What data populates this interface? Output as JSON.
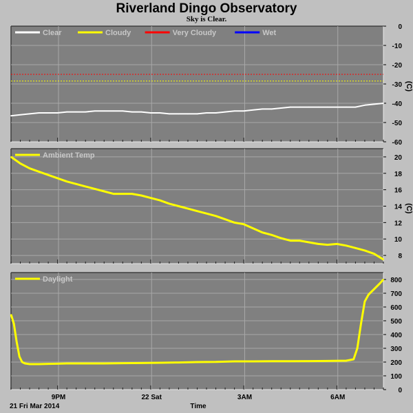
{
  "title": "Riverland Dingo Observatory",
  "subtitle": "Sky is Clear.",
  "xaxis": {
    "date_label": "21 Fri Mar 2014",
    "time_label": "Time",
    "tick_labels": [
      "9PM",
      "22 Sat",
      "3AM",
      "6AM"
    ]
  },
  "colors": {
    "plot_bg": "#808080",
    "page_bg": "#c0c0c0",
    "clear": "#ffffff",
    "cloudy": "#ffff00",
    "very_cloudy": "#ff0000",
    "wet": "#0000ff"
  },
  "chart_data": [
    {
      "type": "line",
      "panel": "sky",
      "legend": [
        "Clear",
        "Cloudy",
        "Very Cloudy",
        "Wet"
      ],
      "unit": "(C)",
      "ylim": [
        -60,
        0
      ],
      "yticks": [
        0,
        -10,
        -20,
        -30,
        -40,
        -50,
        -60
      ],
      "grid": true,
      "legend_placement": "top-left",
      "thresholds": [
        {
          "name": "Very Cloudy",
          "value": -25
        },
        {
          "name": "Cloudy",
          "value": -28.5
        }
      ],
      "series": [
        {
          "name": "Clear",
          "x": [
            0,
            0.5,
            1,
            1.5,
            2,
            2.5,
            3,
            3.5,
            4,
            4.5,
            5,
            5.5,
            6,
            6.5,
            7,
            7.5,
            8,
            8.5,
            9,
            9.5,
            10,
            10.5,
            11,
            11.5,
            12,
            12.5,
            13,
            13.5,
            14,
            14.5,
            15,
            15.5,
            16,
            16.5,
            17,
            17.5,
            18,
            18.5,
            19,
            19.5,
            20
          ],
          "values": [
            -46.5,
            -46,
            -45.5,
            -45,
            -45,
            -45,
            -44.5,
            -44.5,
            -44.5,
            -44,
            -44,
            -44,
            -44,
            -44.5,
            -44.5,
            -45,
            -45,
            -45.5,
            -45.5,
            -45.5,
            -45.5,
            -45,
            -45,
            -44.5,
            -44,
            -44,
            -43.5,
            -43,
            -43,
            -42.5,
            -42,
            -42,
            -42,
            -42,
            -42,
            -42,
            -42,
            -42,
            -41,
            -40.5,
            -40
          ]
        }
      ]
    },
    {
      "type": "line",
      "panel": "ambient",
      "legend": [
        "Ambient Temp"
      ],
      "unit": "(C)",
      "ylim": [
        7,
        21
      ],
      "yticks": [
        20,
        18,
        16,
        14,
        12,
        10,
        8
      ],
      "grid": true,
      "legend_placement": "top-left",
      "series": [
        {
          "name": "Ambient Temp",
          "x": [
            0,
            0.5,
            1,
            1.5,
            2,
            2.5,
            3,
            3.5,
            4,
            4.5,
            5,
            5.5,
            6,
            6.5,
            7,
            7.5,
            8,
            8.5,
            9,
            9.5,
            10,
            10.5,
            11,
            11.5,
            12,
            12.5,
            13,
            13.5,
            14,
            14.5,
            15,
            15.5,
            16,
            16.5,
            17,
            17.5,
            18,
            18.5,
            19,
            19.5,
            20
          ],
          "values": [
            20,
            19.2,
            18.6,
            18.2,
            17.8,
            17.4,
            17,
            16.7,
            16.4,
            16.1,
            15.8,
            15.5,
            15.5,
            15.5,
            15.3,
            15,
            14.7,
            14.3,
            14,
            13.7,
            13.4,
            13.1,
            12.8,
            12.4,
            12,
            11.8,
            11.3,
            10.8,
            10.5,
            10.1,
            9.8,
            9.8,
            9.6,
            9.4,
            9.3,
            9.4,
            9.2,
            8.9,
            8.6,
            8.2,
            7.5
          ]
        }
      ]
    },
    {
      "type": "line",
      "panel": "daylight",
      "legend": [
        "Daylight"
      ],
      "unit": "",
      "ylim": [
        0,
        850
      ],
      "yticks": [
        800,
        700,
        600,
        500,
        400,
        300,
        200,
        100,
        0
      ],
      "grid": true,
      "legend_placement": "top-left",
      "series": [
        {
          "name": "Daylight",
          "x": [
            0,
            0.15,
            0.3,
            0.45,
            0.6,
            0.75,
            1,
            1.5,
            2,
            2.5,
            3,
            4,
            5,
            6,
            7,
            8,
            9,
            10,
            11,
            12,
            13,
            14,
            15,
            16,
            17,
            18,
            18.4,
            18.6,
            18.8,
            19,
            19.2,
            19.5,
            19.8,
            20
          ],
          "values": [
            545,
            480,
            350,
            240,
            200,
            190,
            185,
            185,
            187,
            188,
            190,
            190,
            190,
            192,
            193,
            195,
            197,
            200,
            201,
            205,
            205,
            206,
            206,
            207,
            208,
            210,
            220,
            300,
            480,
            640,
            690,
            730,
            770,
            800
          ]
        }
      ]
    }
  ]
}
